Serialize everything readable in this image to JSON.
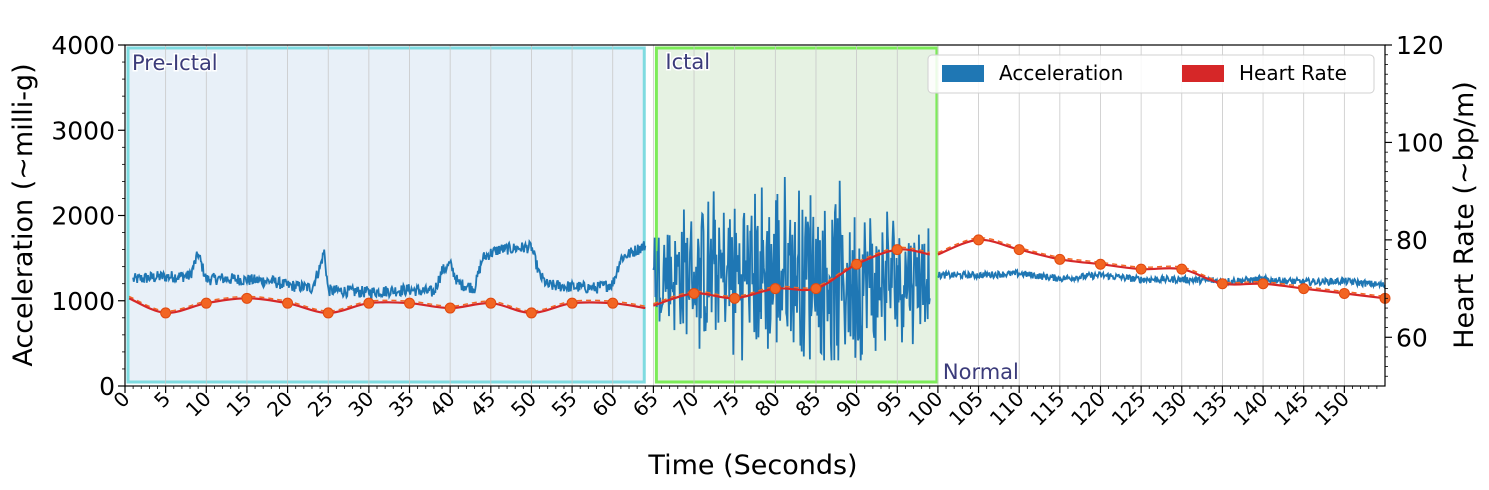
{
  "chart_data": {
    "type": "line",
    "title": "",
    "xlabel": "Time (Seconds)",
    "ylabel_left": "Acceleration (~milli-g)",
    "ylabel_right": "Heart Rate (~bp/m)",
    "xlim": [
      0,
      155
    ],
    "ylim_left": [
      0,
      4000
    ],
    "ylim_right": [
      50,
      120
    ],
    "x_ticks": [
      0,
      5,
      10,
      15,
      20,
      25,
      30,
      35,
      40,
      45,
      50,
      55,
      60,
      65,
      70,
      75,
      80,
      85,
      90,
      95,
      100,
      105,
      110,
      115,
      120,
      125,
      130,
      135,
      140,
      145,
      150
    ],
    "x_tick_labels": [
      "0",
      "5",
      "10",
      "15",
      "20",
      "25",
      "30",
      "35",
      "40",
      "45",
      "50",
      "55",
      "60",
      "65",
      "70",
      "75",
      "80",
      "85",
      "90",
      "95",
      "100",
      "105",
      "110",
      "115",
      "120",
      "125",
      "130",
      "135",
      "140",
      "145",
      "150"
    ],
    "y_left_ticks": [
      0,
      1000,
      2000,
      3000,
      4000
    ],
    "y_left_tick_labels": [
      "0",
      "1000",
      "2000",
      "3000",
      "4000"
    ],
    "y_right_ticks": [
      60,
      80,
      100,
      120
    ],
    "y_right_tick_labels": [
      "60",
      "80",
      "100",
      "120"
    ],
    "grid": "vertical",
    "legend": {
      "placement": "top-right",
      "entries": [
        {
          "label": "Acceleration",
          "color": "#1f77b4"
        },
        {
          "label": "Heart Rate",
          "color": "#d62728"
        }
      ]
    },
    "regions": [
      {
        "label": "Pre-Ictal",
        "x_start": 0,
        "x_end": 64,
        "fill": "#e8f0f8",
        "border": "#7fdbe0"
      },
      {
        "label": "Ictal",
        "x_start": 65,
        "x_end": 100,
        "fill": "#e6f2e3",
        "border": "#7cec58"
      },
      {
        "label": "Normal",
        "x_start": 100,
        "x_end": 155,
        "fill": "none",
        "border": "none"
      }
    ],
    "series": [
      {
        "name": "Acceleration",
        "axis": "left",
        "color": "#1f77b4",
        "segments": [
          {
            "x_start": 1,
            "x_end": 64,
            "keypoints": [
              [
                1,
                1250
              ],
              [
                4,
                1280
              ],
              [
                8,
                1290
              ],
              [
                9,
                1550
              ],
              [
                10,
                1250
              ],
              [
                12,
                1260
              ],
              [
                18,
                1230
              ],
              [
                20,
                1180
              ],
              [
                23,
                1150
              ],
              [
                24,
                1400
              ],
              [
                24.5,
                1580
              ],
              [
                25,
                1120
              ],
              [
                30,
                1100
              ],
              [
                35,
                1130
              ],
              [
                38,
                1100
              ],
              [
                39,
                1350
              ],
              [
                40,
                1430
              ],
              [
                41,
                1200
              ],
              [
                43,
                1150
              ],
              [
                44,
                1500
              ],
              [
                45,
                1560
              ],
              [
                46,
                1600
              ],
              [
                50,
                1630
              ],
              [
                51,
                1300
              ],
              [
                52,
                1180
              ],
              [
                58,
                1150
              ],
              [
                60,
                1200
              ],
              [
                61,
                1500
              ],
              [
                63,
                1600
              ],
              [
                64,
                1650
              ]
            ],
            "noise": 70
          },
          {
            "x_start": 65,
            "x_end": 99,
            "keypoints": [
              [
                65,
                1300
              ],
              [
                68,
                1300
              ],
              [
                72,
                1300
              ],
              [
                76,
                1300
              ],
              [
                80,
                1300
              ],
              [
                84,
                1400
              ],
              [
                88,
                1250
              ],
              [
                92,
                1200
              ],
              [
                96,
                1300
              ],
              [
                99,
                1300
              ]
            ],
            "noise": 900
          },
          {
            "x_start": 100,
            "x_end": 155,
            "keypoints": [
              [
                100,
                1300
              ],
              [
                105,
                1300
              ],
              [
                110,
                1320
              ],
              [
                115,
                1260
              ],
              [
                120,
                1300
              ],
              [
                125,
                1250
              ],
              [
                130,
                1250
              ],
              [
                135,
                1230
              ],
              [
                140,
                1250
              ],
              [
                145,
                1220
              ],
              [
                150,
                1230
              ],
              [
                155,
                1180
              ]
            ],
            "noise": 40
          }
        ]
      },
      {
        "name": "Heart Rate",
        "axis": "right",
        "color": "#d62728",
        "marker_color": "#f26522",
        "segments": [
          {
            "x_start": 0.5,
            "x_end": 64,
            "points": [
              [
                0.5,
                68
              ],
              [
                5,
                65
              ],
              [
                10,
                67
              ],
              [
                15,
                68
              ],
              [
                20,
                67
              ],
              [
                25,
                65
              ],
              [
                30,
                67
              ],
              [
                35,
                67
              ],
              [
                40,
                66
              ],
              [
                45,
                67
              ],
              [
                50,
                65
              ],
              [
                55,
                67
              ],
              [
                60,
                67
              ],
              [
                64,
                66
              ]
            ],
            "markers_from": 5,
            "markers_to": 60
          },
          {
            "x_start": 65,
            "x_end": 99,
            "points": [
              [
                65,
                66.5
              ],
              [
                70,
                69
              ],
              [
                75,
                68
              ],
              [
                80,
                70
              ],
              [
                85,
                70
              ],
              [
                90,
                75
              ],
              [
                95,
                78
              ],
              [
                99,
                77
              ]
            ],
            "markers_from": 70,
            "markers_to": 95
          },
          {
            "x_start": 100,
            "x_end": 155,
            "points": [
              [
                100,
                77
              ],
              [
                105,
                80
              ],
              [
                110,
                78
              ],
              [
                115,
                76
              ],
              [
                120,
                75
              ],
              [
                125,
                74
              ],
              [
                130,
                74
              ],
              [
                135,
                71
              ],
              [
                140,
                71
              ],
              [
                145,
                70
              ],
              [
                150,
                69
              ],
              [
                155,
                68
              ]
            ],
            "markers_from": 105,
            "markers_to": 155
          }
        ]
      }
    ]
  }
}
